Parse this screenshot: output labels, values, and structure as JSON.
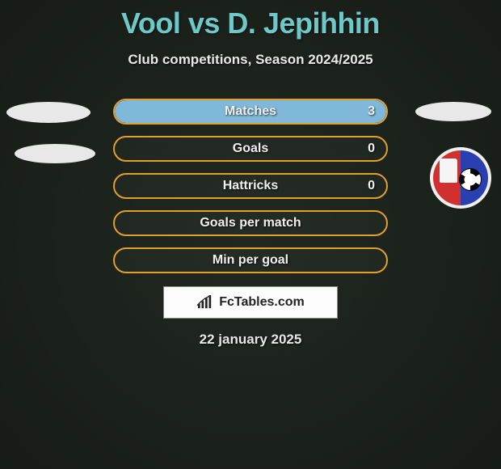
{
  "title": "Vool vs D. Jepihhin",
  "subtitle": "Club competitions, Season 2024/2025",
  "date": "22 january 2025",
  "attribution": "FcTables.com",
  "colors": {
    "title": "#6ec8c8",
    "bar_border": "#e0a030",
    "bar_fill": "#7fb8d8",
    "text": "#e8e8e8",
    "background": "#1a1f1a"
  },
  "bars": [
    {
      "label": "Matches",
      "right_value": "3",
      "right_fill_pct": 100,
      "show_value": true
    },
    {
      "label": "Goals",
      "right_value": "0",
      "right_fill_pct": 0,
      "show_value": true
    },
    {
      "label": "Hattricks",
      "right_value": "0",
      "right_fill_pct": 0,
      "show_value": true
    },
    {
      "label": "Goals per match",
      "right_value": "",
      "right_fill_pct": 0,
      "show_value": false
    },
    {
      "label": "Min per goal",
      "right_value": "",
      "right_fill_pct": 0,
      "show_value": false
    }
  ],
  "club_logo": {
    "name": "club-crest",
    "palette": {
      "left": "#d03030",
      "right": "#2a3fb0",
      "ring": "#f0f0f0"
    }
  }
}
